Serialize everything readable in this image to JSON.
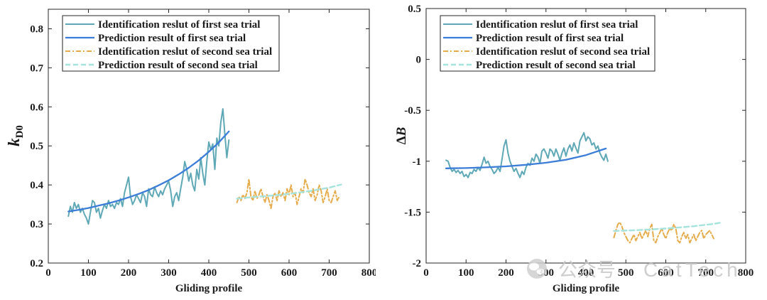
{
  "chart_data": [
    {
      "type": "line",
      "xlabel": "Gliding profile",
      "ylabel": {
        "italic": "k",
        "subscript": "D0"
      },
      "xlim": [
        0,
        800
      ],
      "ylim": [
        0.2,
        0.85
      ],
      "xticks": [
        0,
        100,
        200,
        300,
        400,
        500,
        600,
        700,
        800
      ],
      "xticklabels": [
        "0",
        "100",
        "200",
        "300",
        "400",
        "500",
        "600",
        "700",
        "800"
      ],
      "yticks": [
        0.2,
        0.3,
        0.4,
        0.5,
        0.6,
        0.7,
        0.8
      ],
      "yticklabels": [
        "0.2",
        "0.3",
        "0.4",
        "0.5",
        "0.6",
        "0.7",
        "0.8"
      ],
      "legend_position": "top-left",
      "series": [
        {
          "name": "Identification reslut of first sea trial",
          "color": "#5fa8b6",
          "x": [
            50,
            55,
            60,
            65,
            70,
            75,
            80,
            85,
            90,
            95,
            100,
            105,
            110,
            115,
            120,
            125,
            130,
            135,
            140,
            145,
            150,
            155,
            160,
            165,
            170,
            175,
            180,
            185,
            190,
            195,
            200,
            205,
            210,
            215,
            220,
            225,
            230,
            235,
            240,
            245,
            250,
            255,
            260,
            265,
            270,
            275,
            280,
            285,
            290,
            295,
            300,
            305,
            310,
            315,
            320,
            325,
            330,
            335,
            340,
            345,
            350,
            355,
            360,
            365,
            370,
            375,
            380,
            385,
            390,
            395,
            400,
            405,
            410,
            415,
            420,
            425,
            430,
            435,
            440,
            445,
            450
          ],
          "y": [
            0.32,
            0.345,
            0.33,
            0.355,
            0.34,
            0.35,
            0.33,
            0.34,
            0.325,
            0.315,
            0.3,
            0.33,
            0.36,
            0.355,
            0.33,
            0.34,
            0.315,
            0.335,
            0.35,
            0.34,
            0.36,
            0.345,
            0.35,
            0.34,
            0.355,
            0.35,
            0.365,
            0.345,
            0.38,
            0.4,
            0.42,
            0.37,
            0.35,
            0.36,
            0.375,
            0.365,
            0.355,
            0.38,
            0.37,
            0.345,
            0.39,
            0.375,
            0.37,
            0.395,
            0.38,
            0.37,
            0.385,
            0.375,
            0.39,
            0.4,
            0.41,
            0.385,
            0.345,
            0.37,
            0.38,
            0.36,
            0.39,
            0.42,
            0.46,
            0.44,
            0.41,
            0.43,
            0.4,
            0.385,
            0.44,
            0.415,
            0.47,
            0.43,
            0.4,
            0.46,
            0.51,
            0.49,
            0.505,
            0.44,
            0.52,
            0.5,
            0.56,
            0.595,
            0.53,
            0.47,
            0.515
          ]
        },
        {
          "name": "Prediction result of first sea trial",
          "color": "#3b7dd8",
          "x": [
            50,
            75,
            100,
            125,
            150,
            175,
            200,
            225,
            250,
            275,
            300,
            325,
            350,
            375,
            400,
            425,
            450
          ],
          "y": [
            0.332,
            0.336,
            0.341,
            0.347,
            0.353,
            0.36,
            0.368,
            0.377,
            0.387,
            0.399,
            0.412,
            0.427,
            0.444,
            0.463,
            0.485,
            0.509,
            0.537
          ]
        },
        {
          "name": "Identification reslut of second sea trial",
          "color": "#e6ac4c",
          "x": [
            470,
            475,
            480,
            485,
            490,
            495,
            500,
            505,
            510,
            515,
            520,
            525,
            530,
            535,
            540,
            545,
            550,
            555,
            560,
            565,
            570,
            575,
            580,
            585,
            590,
            595,
            600,
            605,
            610,
            615,
            620,
            625,
            630,
            635,
            640,
            645,
            650,
            655,
            660,
            665,
            670,
            675,
            680,
            685,
            690,
            695,
            700,
            705,
            710,
            715,
            720,
            725
          ],
          "y": [
            0.355,
            0.37,
            0.36,
            0.375,
            0.365,
            0.38,
            0.415,
            0.37,
            0.36,
            0.385,
            0.365,
            0.375,
            0.39,
            0.37,
            0.355,
            0.375,
            0.36,
            0.34,
            0.37,
            0.38,
            0.36,
            0.385,
            0.37,
            0.38,
            0.36,
            0.39,
            0.375,
            0.4,
            0.37,
            0.38,
            0.35,
            0.37,
            0.39,
            0.38,
            0.415,
            0.4,
            0.38,
            0.37,
            0.39,
            0.36,
            0.375,
            0.4,
            0.385,
            0.355,
            0.37,
            0.39,
            0.36,
            0.355,
            0.37,
            0.385,
            0.36,
            0.37
          ]
        },
        {
          "name": "Prediction result of second sea trial",
          "color": "#a6e3dc",
          "x": [
            470,
            500,
            550,
            600,
            650,
            700,
            730
          ],
          "y": [
            0.365,
            0.368,
            0.372,
            0.377,
            0.384,
            0.393,
            0.401
          ]
        }
      ]
    },
    {
      "type": "line",
      "xlabel": "Gliding profile",
      "ylabel": {
        "prefix": "Δ",
        "italic": "B"
      },
      "xlim": [
        0,
        800
      ],
      "ylim": [
        -2,
        0.5
      ],
      "xticks": [
        0,
        100,
        200,
        300,
        400,
        500,
        600,
        700,
        800
      ],
      "xticklabels": [
        "0",
        "100",
        "200",
        "300",
        "400",
        "500",
        "600",
        "700",
        "800"
      ],
      "yticks": [
        -2,
        -1.5,
        -1,
        -0.5,
        0,
        0.5
      ],
      "yticklabels": [
        "-2",
        "-1.5",
        "-1",
        "-0.5",
        "0",
        "0.5"
      ],
      "legend_position": "top-left",
      "series": [
        {
          "name": "Identification reslut of first sea trial",
          "color": "#5fa8b6",
          "x": [
            50,
            55,
            60,
            65,
            70,
            75,
            80,
            85,
            90,
            95,
            100,
            105,
            110,
            115,
            120,
            125,
            130,
            135,
            140,
            145,
            150,
            155,
            160,
            165,
            170,
            175,
            180,
            185,
            190,
            195,
            200,
            205,
            210,
            215,
            220,
            225,
            230,
            235,
            240,
            245,
            250,
            255,
            260,
            265,
            270,
            275,
            280,
            285,
            290,
            295,
            300,
            305,
            310,
            315,
            320,
            325,
            330,
            335,
            340,
            345,
            350,
            355,
            360,
            365,
            370,
            375,
            380,
            385,
            390,
            395,
            400,
            405,
            410,
            415,
            420,
            425,
            430,
            435,
            440,
            445,
            450,
            455
          ],
          "y": [
            -0.99,
            -1.0,
            -1.06,
            -1.1,
            -1.08,
            -1.11,
            -1.09,
            -1.12,
            -1.1,
            -1.15,
            -1.13,
            -1.16,
            -1.11,
            -1.12,
            -1.08,
            -1.1,
            -1.06,
            -1.09,
            -1.03,
            -0.96,
            -1.02,
            -1.0,
            -1.05,
            -1.08,
            -1.12,
            -1.1,
            -1.06,
            -1.1,
            -0.98,
            -0.85,
            -0.79,
            -0.92,
            -1.0,
            -1.05,
            -1.1,
            -1.07,
            -1.12,
            -1.16,
            -1.1,
            -1.13,
            -1.06,
            -1.02,
            -1.04,
            -0.97,
            -1.0,
            -0.93,
            -0.96,
            -1.02,
            -0.9,
            -0.88,
            -0.92,
            -0.97,
            -0.88,
            -0.9,
            -0.95,
            -0.88,
            -0.93,
            -0.99,
            -0.92,
            -0.87,
            -0.95,
            -0.88,
            -0.84,
            -0.9,
            -0.82,
            -0.87,
            -0.92,
            -0.8,
            -0.76,
            -0.72,
            -0.8,
            -0.76,
            -0.78,
            -0.84,
            -0.82,
            -0.88,
            -0.85,
            -0.92,
            -0.96,
            -0.99,
            -0.93,
            -1.0
          ]
        },
        {
          "name": "Prediction result of first sea trial",
          "color": "#3b7dd8",
          "x": [
            50,
            100,
            150,
            200,
            250,
            300,
            350,
            400,
            450
          ],
          "y": [
            -1.07,
            -1.067,
            -1.06,
            -1.05,
            -1.035,
            -1.015,
            -0.985,
            -0.94,
            -0.875
          ]
        },
        {
          "name": "Identification reslut of second sea trial",
          "color": "#e6ac4c",
          "x": [
            470,
            475,
            480,
            485,
            490,
            495,
            500,
            505,
            510,
            515,
            520,
            525,
            530,
            535,
            540,
            545,
            550,
            555,
            560,
            565,
            570,
            575,
            580,
            585,
            590,
            595,
            600,
            605,
            610,
            615,
            620,
            625,
            630,
            635,
            640,
            645,
            650,
            655,
            660,
            665,
            670,
            675,
            680,
            685,
            690,
            695,
            700,
            705,
            710,
            715,
            720
          ],
          "y": [
            -1.75,
            -1.68,
            -1.62,
            -1.6,
            -1.64,
            -1.7,
            -1.74,
            -1.78,
            -1.8,
            -1.76,
            -1.72,
            -1.78,
            -1.74,
            -1.7,
            -1.76,
            -1.72,
            -1.68,
            -1.74,
            -1.66,
            -1.62,
            -1.78,
            -1.8,
            -1.74,
            -1.7,
            -1.66,
            -1.72,
            -1.76,
            -1.7,
            -1.66,
            -1.68,
            -1.62,
            -1.66,
            -1.78,
            -1.8,
            -1.74,
            -1.7,
            -1.76,
            -1.72,
            -1.8,
            -1.76,
            -1.72,
            -1.78,
            -1.74,
            -1.7,
            -1.68,
            -1.76,
            -1.72,
            -1.7,
            -1.68,
            -1.72,
            -1.76
          ]
        },
        {
          "name": "Prediction result of second sea trial",
          "color": "#a6e3dc",
          "x": [
            470,
            520,
            570,
            620,
            670,
            720,
            735
          ],
          "y": [
            -1.685,
            -1.678,
            -1.668,
            -1.655,
            -1.638,
            -1.615,
            -1.605
          ]
        }
      ]
    }
  ],
  "watermark": {
    "icon": "wechat-icon",
    "label_cn": "公众号",
    "separator": "·",
    "label_en": "CatTech"
  }
}
